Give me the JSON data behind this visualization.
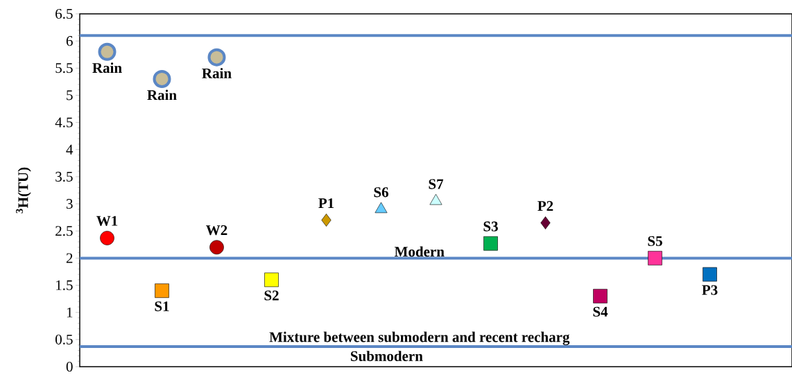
{
  "chart_data": {
    "type": "scatter",
    "ylabel": "$^{3}$H(TU)",
    "categories": [
      null,
      null,
      null,
      null,
      null,
      null,
      null,
      null,
      null,
      null,
      null,
      null,
      null
    ],
    "ylim": [
      0,
      6.5
    ],
    "yticks": [
      0,
      0.5,
      1,
      1.5,
      2,
      2.5,
      3,
      3.5,
      4,
      4.5,
      5,
      5.5,
      6,
      6.5
    ],
    "series": [
      {
        "name": "Rain",
        "color": "#c8bd98",
        "marker": "circle",
        "values": [
          5.8,
          5.3,
          5.7,
          null,
          null,
          null,
          null,
          null,
          null,
          null,
          null,
          null,
          null
        ]
      },
      {
        "name": "W1",
        "color": "#ff0000",
        "marker": "circle",
        "values": [
          2.37,
          null,
          null,
          null,
          null,
          null,
          null,
          null,
          null,
          null,
          null,
          null,
          null
        ]
      },
      {
        "name": "S1",
        "color": "#ff9900",
        "marker": "square",
        "values": [
          null,
          1.4,
          null,
          null,
          null,
          null,
          null,
          null,
          null,
          null,
          null,
          null,
          null
        ]
      },
      {
        "name": "W2",
        "color": "#c00000",
        "marker": "circle",
        "values": [
          null,
          null,
          2.2,
          null,
          null,
          null,
          null,
          null,
          null,
          null,
          null,
          null,
          null
        ]
      },
      {
        "name": "S2",
        "color": "#ffff00",
        "marker": "square",
        "values": [
          null,
          null,
          null,
          1.6,
          null,
          null,
          null,
          null,
          null,
          null,
          null,
          null,
          null
        ]
      },
      {
        "name": "P1",
        "color": "#cc9900",
        "marker": "diamond",
        "values": [
          null,
          null,
          null,
          null,
          2.7,
          null,
          null,
          null,
          null,
          null,
          null,
          null,
          null
        ]
      },
      {
        "name": "S6",
        "color": "#66ccff",
        "marker": "triangle",
        "values": [
          null,
          null,
          null,
          null,
          null,
          2.9,
          null,
          null,
          null,
          null,
          null,
          null,
          null
        ]
      },
      {
        "name": "S7",
        "color": "#ccffff",
        "marker": "triangle",
        "values": [
          null,
          null,
          null,
          null,
          null,
          null,
          3.05,
          null,
          null,
          null,
          null,
          null,
          null
        ]
      },
      {
        "name": "S3",
        "color": "#00b050",
        "marker": "square",
        "values": [
          null,
          null,
          null,
          null,
          null,
          null,
          null,
          2.27,
          null,
          null,
          null,
          null,
          null
        ]
      },
      {
        "name": "P2",
        "color": "#660033",
        "marker": "diamond",
        "values": [
          null,
          null,
          null,
          null,
          null,
          null,
          null,
          null,
          2.65,
          null,
          null,
          null,
          null
        ]
      },
      {
        "name": "S4",
        "color": "#c00060",
        "marker": "square",
        "values": [
          null,
          null,
          null,
          null,
          null,
          null,
          null,
          null,
          null,
          1.3,
          null,
          null,
          null
        ]
      },
      {
        "name": "S5",
        "color": "#ff3399",
        "marker": "square",
        "values": [
          null,
          null,
          null,
          null,
          null,
          null,
          null,
          null,
          null,
          null,
          2.0,
          null,
          null
        ]
      },
      {
        "name": "P3",
        "color": "#0070c0",
        "marker": "square",
        "values": [
          null,
          null,
          null,
          null,
          null,
          null,
          null,
          null,
          null,
          null,
          null,
          1.7,
          null
        ]
      }
    ],
    "ref_lines": [
      {
        "axis": "y",
        "value": 6.1,
        "color": "#5b87c5"
      },
      {
        "axis": "y",
        "value": 2,
        "label": "Modern",
        "color": "#5b87c5"
      },
      {
        "axis": "y",
        "value": 0.37,
        "label": "Mixture between submodern and recent recharg",
        "color": "#5b87c5"
      }
    ],
    "annotations": [
      "Submodern"
    ]
  }
}
